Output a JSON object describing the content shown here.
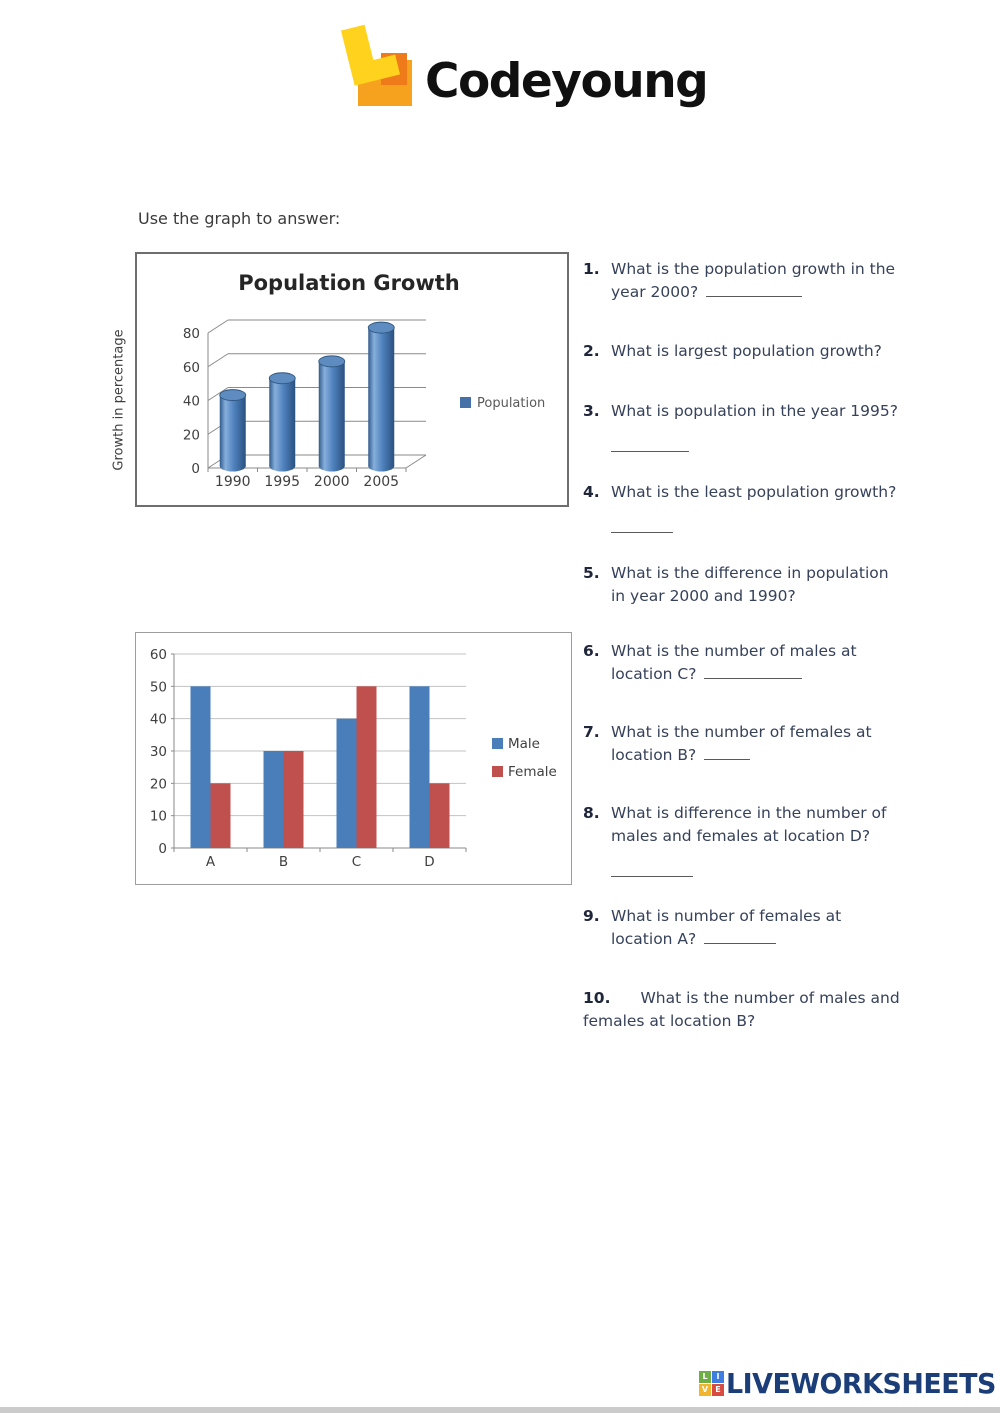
{
  "page": {
    "brand": "Codeyoung",
    "instruction": "Use the graph to answer:",
    "footer_brand": "LIVEWORKSHEETS",
    "footer_tiles": [
      "L",
      "I",
      "V",
      "E"
    ]
  },
  "chart_data": [
    {
      "type": "bar",
      "style": "3d-cylinder",
      "title": "Population Growth",
      "categories": [
        "1990",
        "1995",
        "2000",
        "2005"
      ],
      "series": [
        {
          "name": "Population",
          "color": "#4f81bd",
          "values": [
            42,
            52,
            62,
            82
          ]
        }
      ],
      "xlabel": "",
      "ylabel": "Growth in percentage",
      "yticks": [
        0,
        20,
        40,
        60,
        80
      ],
      "ylim": [
        0,
        90
      ],
      "grid": true,
      "legend_position": "right"
    },
    {
      "type": "bar",
      "style": "grouped-2d",
      "title": "",
      "categories": [
        "A",
        "B",
        "C",
        "D"
      ],
      "series": [
        {
          "name": "Male",
          "color": "#4a7ebb",
          "values": [
            50,
            30,
            40,
            50
          ]
        },
        {
          "name": "Female",
          "color": "#c0504d",
          "values": [
            20,
            30,
            50,
            20
          ]
        }
      ],
      "xlabel": "",
      "ylabel": "",
      "yticks": [
        0,
        10,
        20,
        30,
        40,
        50,
        60
      ],
      "ylim": [
        0,
        60
      ],
      "grid": true,
      "legend_position": "right"
    }
  ],
  "questions": [
    {
      "num": "1.",
      "lines": [
        "What is the population growth in the",
        "year 2000?"
      ],
      "blank": "inline"
    },
    {
      "num": "2.",
      "lines": [
        "What is largest population growth?"
      ],
      "blank": "none"
    },
    {
      "num": "3.",
      "lines": [
        "What is population in the year 1995?"
      ],
      "blank": "below"
    },
    {
      "num": "4.",
      "lines": [
        "What is the least population growth?"
      ],
      "blank": "below"
    },
    {
      "num": "5.",
      "lines": [
        "What is the difference in population",
        "in year 2000 and 1990?"
      ],
      "blank": "none"
    },
    {
      "num": "6.",
      "lines": [
        "What is the number of males at",
        "location C?"
      ],
      "blank": "inline"
    },
    {
      "num": "7.",
      "lines": [
        "What is the number of females at",
        "location B?"
      ],
      "blank": "inline"
    },
    {
      "num": "8.",
      "lines": [
        "What is difference in the number of",
        "males and females at location D?"
      ],
      "blank": "below"
    },
    {
      "num": "9.",
      "lines": [
        "What is number of females at",
        "location A?"
      ],
      "blank": "inline"
    },
    {
      "num": "10.",
      "lines": [
        "What is the number of males and",
        "females at location B?"
      ],
      "blank": "none"
    }
  ]
}
